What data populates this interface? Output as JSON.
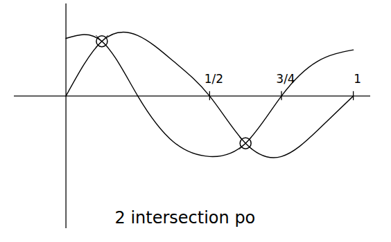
{
  "chart_data": {
    "type": "line",
    "x": [
      0,
      0.125,
      0.25,
      0.375,
      0.5,
      0.625,
      0.75,
      0.875,
      1
    ],
    "series": [
      {
        "color": "#000000",
        "values": [
          1.0,
          0.95,
          0,
          -0.8,
          -1.05,
          -0.82,
          0,
          0.6,
          0.8
        ]
      },
      {
        "color": "#000000",
        "values": [
          0,
          0.95,
          1.05,
          0.6,
          0,
          -0.82,
          -1.05,
          -0.6,
          0
        ]
      },
      {
        "color": "#000000",
        "type": "scatter",
        "marker": "circle",
        "values": [
          null,
          0.95,
          null,
          null,
          null,
          -0.82,
          null,
          null,
          null
        ]
      }
    ],
    "xlim": [
      -0.18,
      1.06
    ],
    "ylim": [
      -2.3,
      1.6
    ],
    "xticks": [
      {
        "value": 0.5,
        "label": "1/2"
      },
      {
        "value": 0.75,
        "label": "3/4"
      },
      {
        "value": 1,
        "label": "1"
      }
    ],
    "tick_labels": "x",
    "grid": false,
    "annotations": [
      "2 intersection po"
    ]
  }
}
